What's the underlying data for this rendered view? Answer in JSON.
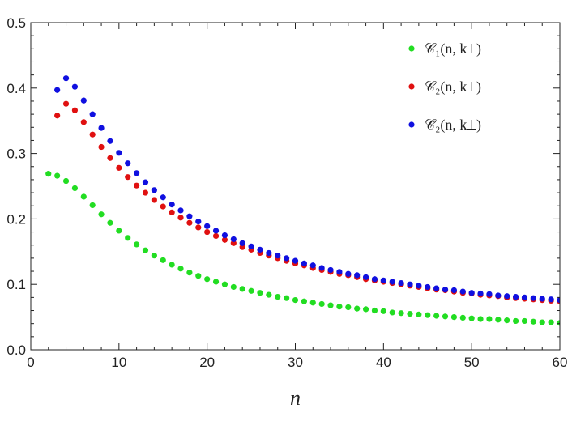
{
  "chart_data": {
    "type": "scatter",
    "title": "",
    "xlabel": "n",
    "ylabel": "",
    "xlim": [
      0,
      60
    ],
    "ylim": [
      0,
      0.5
    ],
    "xticks": [
      "0",
      "10",
      "20",
      "30",
      "40",
      "50",
      "60"
    ],
    "yticks": [
      "0.0",
      "0.1",
      "0.2",
      "0.3",
      "0.4",
      "0.5"
    ],
    "legend_position": "top-right",
    "grid": false,
    "series": [
      {
        "name": "𝒞₁(n, k⊥)",
        "color": "#22dd22",
        "x": [
          2,
          3,
          4,
          5,
          6,
          7,
          8,
          9,
          10,
          11,
          12,
          13,
          14,
          15,
          16,
          17,
          18,
          19,
          20,
          21,
          22,
          23,
          24,
          25,
          26,
          27,
          28,
          29,
          30,
          31,
          32,
          33,
          34,
          35,
          36,
          37,
          38,
          39,
          40,
          41,
          42,
          43,
          44,
          45,
          46,
          47,
          48,
          49,
          50,
          51,
          52,
          53,
          54,
          55,
          56,
          57,
          58,
          59,
          60
        ],
        "y": [
          0.269,
          0.266,
          0.258,
          0.247,
          0.234,
          0.221,
          0.207,
          0.194,
          0.182,
          0.171,
          0.161,
          0.152,
          0.144,
          0.137,
          0.13,
          0.124,
          0.118,
          0.113,
          0.108,
          0.104,
          0.1,
          0.096,
          0.093,
          0.09,
          0.087,
          0.084,
          0.081,
          0.079,
          0.076,
          0.074,
          0.072,
          0.07,
          0.068,
          0.066,
          0.065,
          0.063,
          0.062,
          0.06,
          0.059,
          0.057,
          0.056,
          0.055,
          0.054,
          0.053,
          0.052,
          0.051,
          0.05,
          0.049,
          0.048,
          0.047,
          0.047,
          0.046,
          0.045,
          0.044,
          0.044,
          0.043,
          0.042,
          0.042,
          0.041
        ]
      },
      {
        "name": "𝒞₂(n, k⊥)",
        "color": "#e01010",
        "x": [
          3,
          4,
          5,
          6,
          7,
          8,
          9,
          10,
          11,
          12,
          13,
          14,
          15,
          16,
          17,
          18,
          19,
          20,
          21,
          22,
          23,
          24,
          25,
          26,
          27,
          28,
          29,
          30,
          31,
          32,
          33,
          34,
          35,
          36,
          37,
          38,
          39,
          40,
          41,
          42,
          43,
          44,
          45,
          46,
          47,
          48,
          49,
          50,
          51,
          52,
          53,
          54,
          55,
          56,
          57,
          58,
          59,
          60
        ],
        "y": [
          0.358,
          0.376,
          0.366,
          0.348,
          0.329,
          0.31,
          0.293,
          0.278,
          0.264,
          0.251,
          0.24,
          0.229,
          0.219,
          0.21,
          0.202,
          0.194,
          0.187,
          0.18,
          0.174,
          0.168,
          0.163,
          0.157,
          0.153,
          0.148,
          0.144,
          0.14,
          0.136,
          0.132,
          0.129,
          0.125,
          0.122,
          0.119,
          0.116,
          0.114,
          0.111,
          0.108,
          0.106,
          0.104,
          0.102,
          0.1,
          0.098,
          0.096,
          0.094,
          0.092,
          0.091,
          0.089,
          0.087,
          0.086,
          0.084,
          0.083,
          0.082,
          0.08,
          0.079,
          0.078,
          0.077,
          0.076,
          0.075,
          0.074
        ]
      },
      {
        "name": "𝒞̃₂(n, k⊥)",
        "color": "#1010e0",
        "x": [
          3,
          4,
          5,
          6,
          7,
          8,
          9,
          10,
          11,
          12,
          13,
          14,
          15,
          16,
          17,
          18,
          19,
          20,
          21,
          22,
          23,
          24,
          25,
          26,
          27,
          28,
          29,
          30,
          31,
          32,
          33,
          34,
          35,
          36,
          37,
          38,
          39,
          40,
          41,
          42,
          43,
          44,
          45,
          46,
          47,
          48,
          49,
          50,
          51,
          52,
          53,
          54,
          55,
          56,
          57,
          58,
          59,
          60
        ],
        "y": [
          0.397,
          0.415,
          0.402,
          0.381,
          0.36,
          0.339,
          0.319,
          0.301,
          0.285,
          0.27,
          0.256,
          0.244,
          0.233,
          0.222,
          0.213,
          0.204,
          0.196,
          0.189,
          0.182,
          0.175,
          0.169,
          0.163,
          0.158,
          0.153,
          0.148,
          0.144,
          0.14,
          0.136,
          0.132,
          0.129,
          0.125,
          0.122,
          0.119,
          0.116,
          0.114,
          0.111,
          0.108,
          0.106,
          0.104,
          0.102,
          0.1,
          0.098,
          0.096,
          0.094,
          0.092,
          0.091,
          0.089,
          0.087,
          0.086,
          0.085,
          0.083,
          0.082,
          0.081,
          0.08,
          0.079,
          0.078,
          0.077,
          0.076
        ]
      }
    ]
  }
}
